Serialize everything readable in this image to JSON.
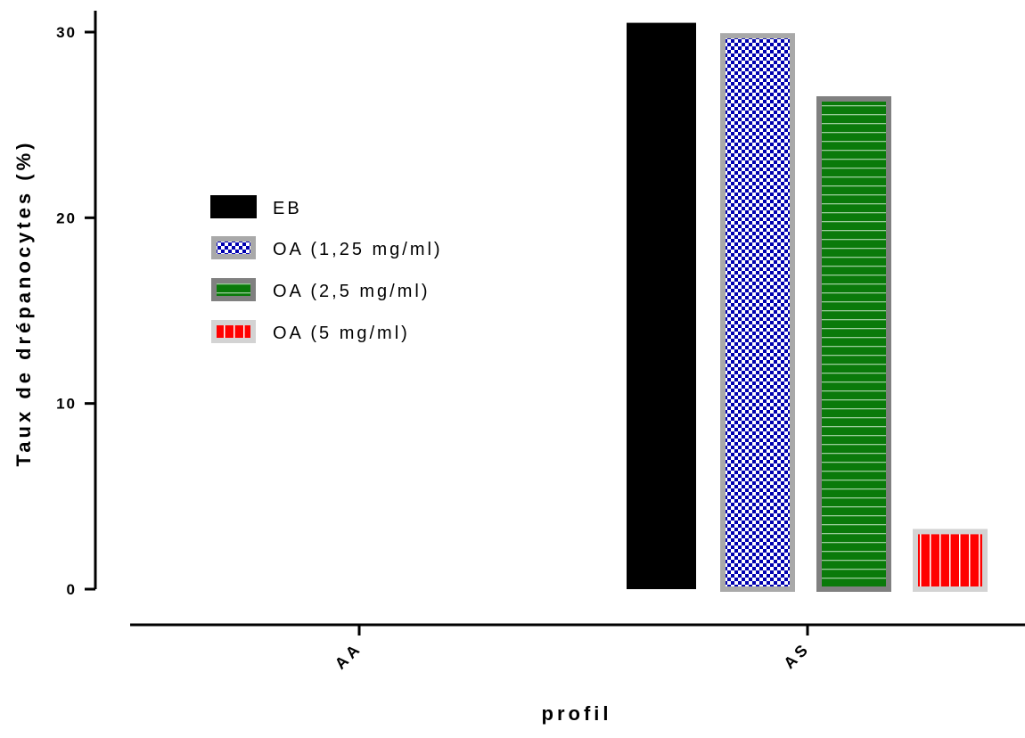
{
  "chart_data": {
    "type": "bar",
    "categories": [
      "AA",
      "AS"
    ],
    "series": [
      {
        "name": "EB",
        "values": [
          0,
          30.5
        ],
        "color": "#000000",
        "pattern": "solid"
      },
      {
        "name": "OA (1,25 mg/ml)",
        "values": [
          0,
          29.8
        ],
        "color": "#0000b0",
        "pattern": "checker",
        "border": "#a9a9a9"
      },
      {
        "name": "OA (2,5 mg/ml)",
        "values": [
          0,
          26.4
        ],
        "color": "#0a7a0a",
        "pattern": "horizontal-stripes",
        "border": "#808080"
      },
      {
        "name": "OA (5 mg/ml)",
        "values": [
          0,
          3.1
        ],
        "color": "#ff0000",
        "pattern": "vertical-stripes",
        "border": "#d3d3d3"
      }
    ],
    "ylabel": "Taux de drépanocytes (%)",
    "xlabel": "profil",
    "ylim": [
      0,
      30
    ],
    "yticks": [
      "0",
      "10",
      "20",
      "30"
    ],
    "grid": false,
    "legend_position": "left-middle"
  }
}
